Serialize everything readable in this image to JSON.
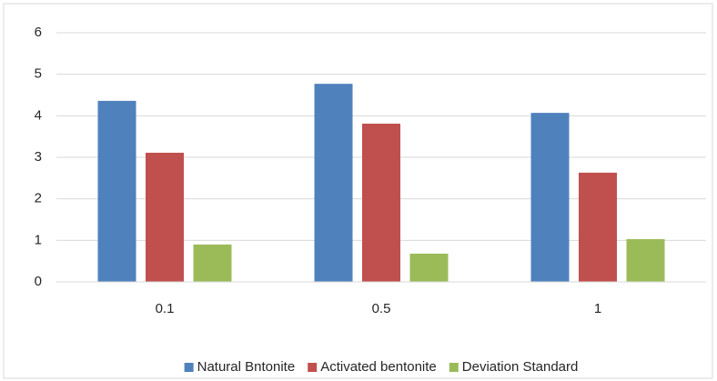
{
  "chart_data": {
    "type": "bar",
    "categories": [
      "0.1",
      "0.5",
      "1"
    ],
    "series": [
      {
        "name": "Natural Bntonite",
        "color": "#4f81bd",
        "values": [
          4.36,
          4.77,
          4.07
        ]
      },
      {
        "name": "Activated bentonite",
        "color": "#c0504d",
        "values": [
          3.11,
          3.81,
          2.63
        ]
      },
      {
        "name": "Deviation Standard",
        "color": "#9bbb59",
        "values": [
          0.9,
          0.68,
          1.03
        ]
      }
    ],
    "ylim": [
      0,
      6
    ],
    "yticks": [
      0,
      1,
      2,
      3,
      4,
      5,
      6
    ],
    "grid": true,
    "legend": "bottom"
  }
}
